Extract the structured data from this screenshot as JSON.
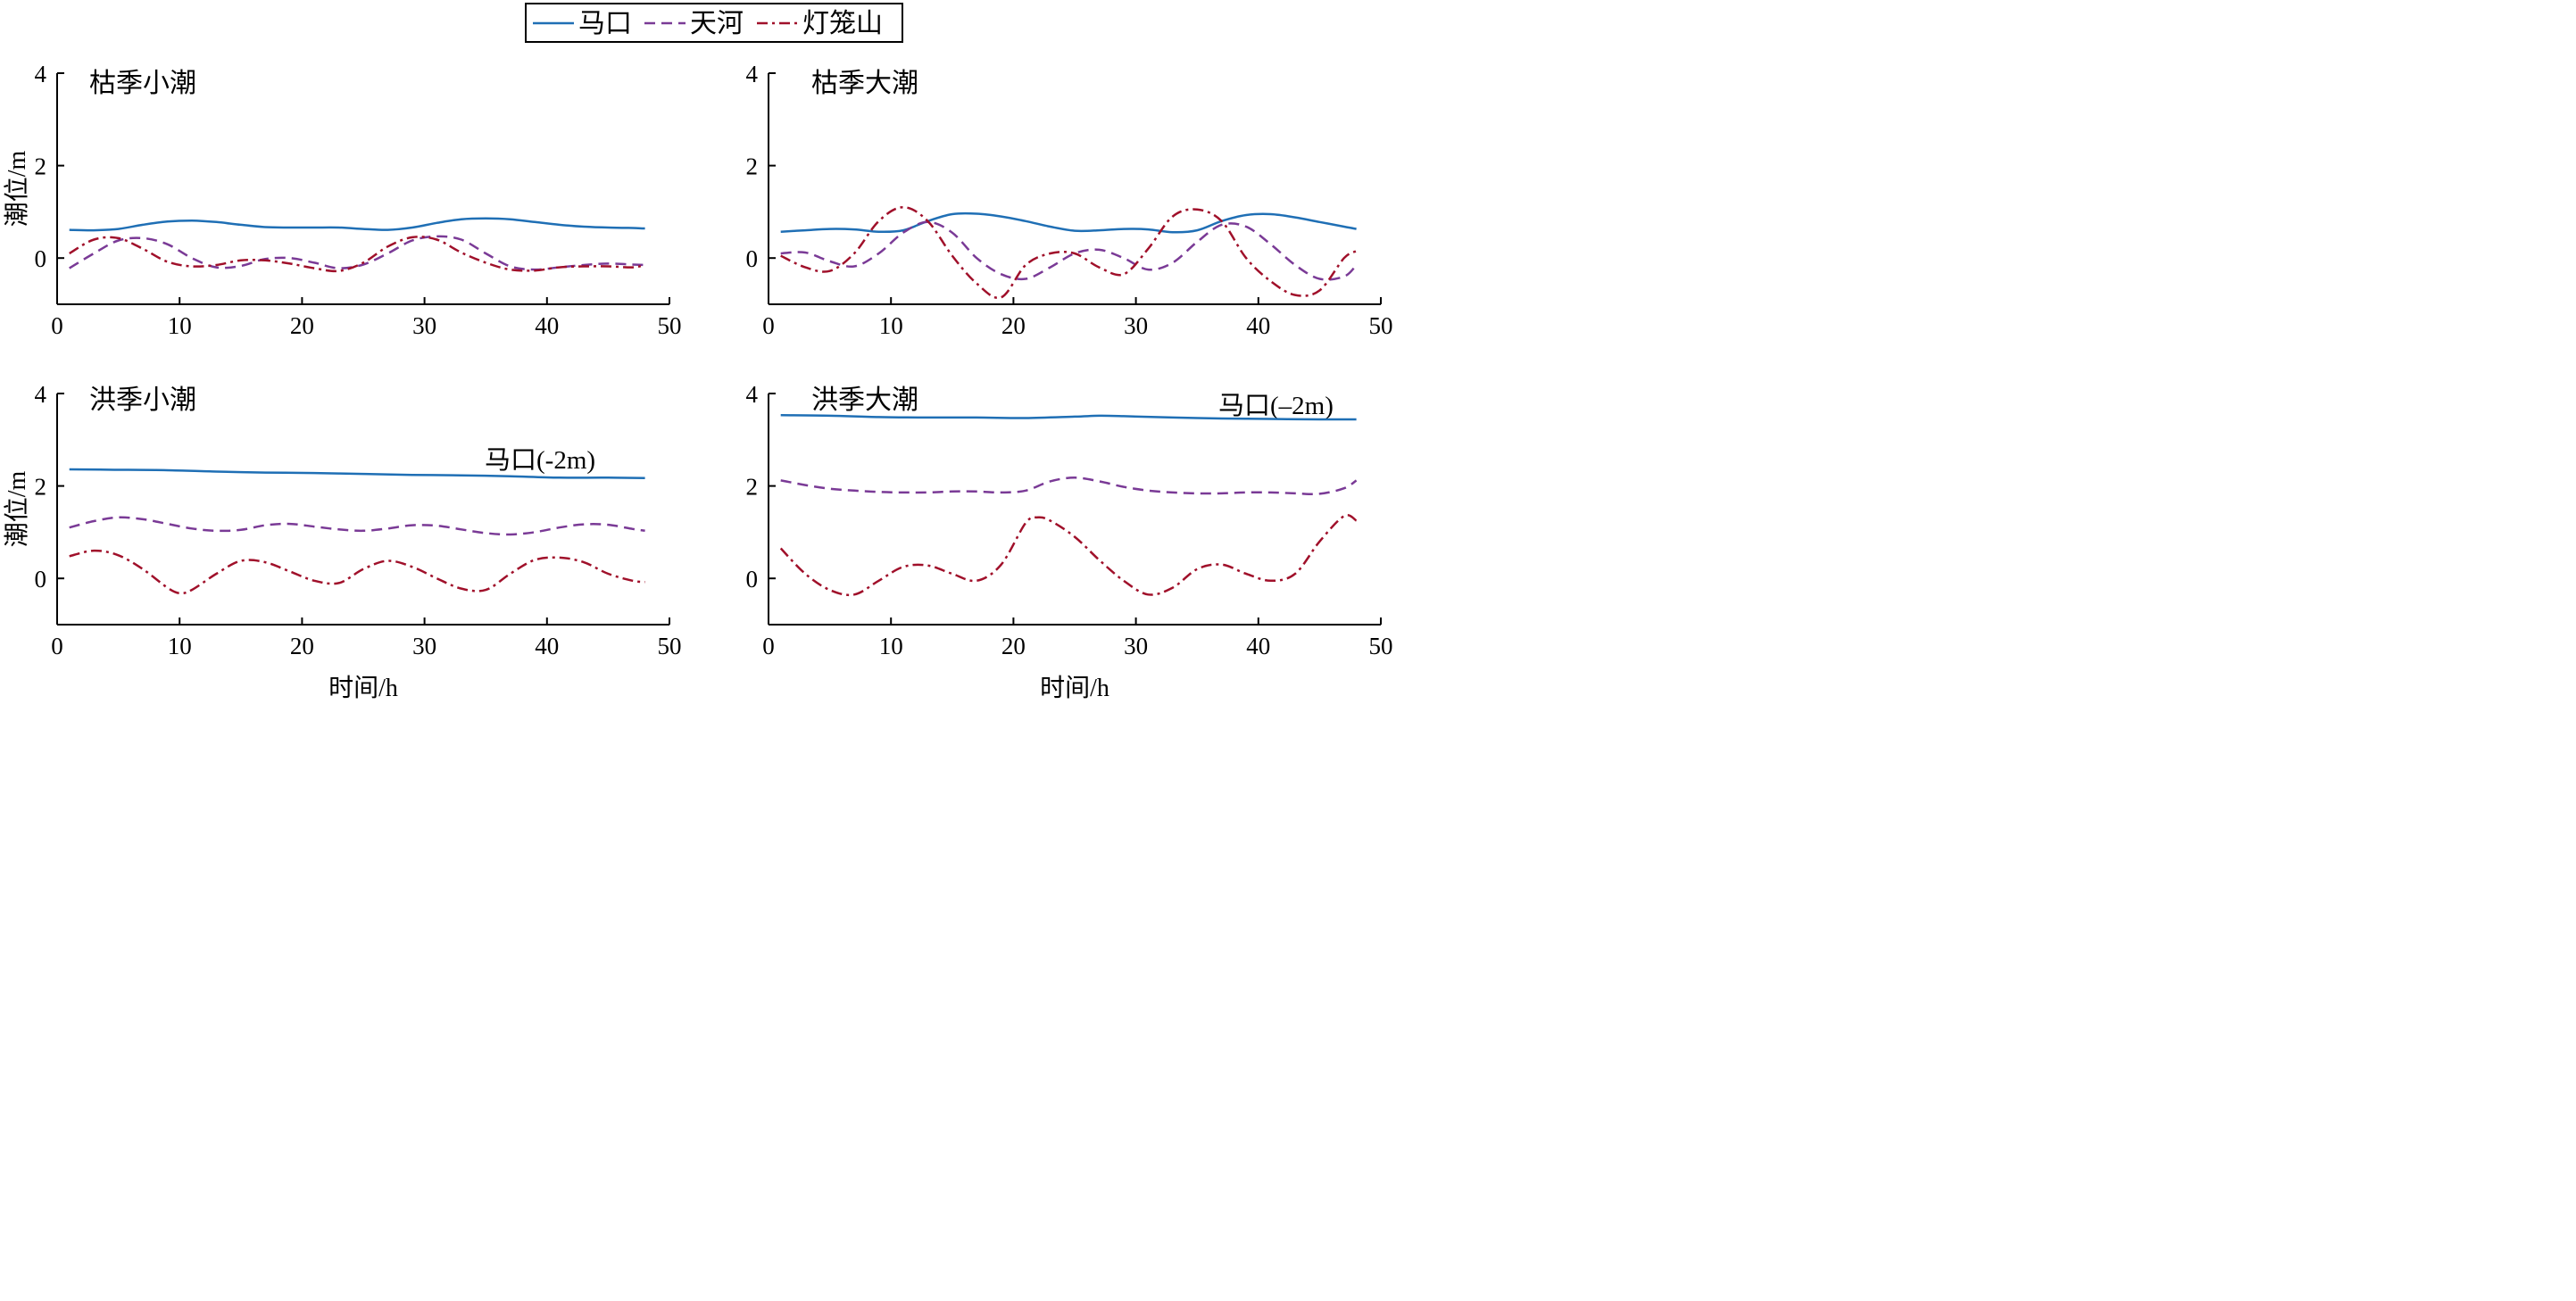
{
  "legend": [
    {
      "label": "马口",
      "color": "#1f6fb5",
      "dash": "solid"
    },
    {
      "label": "天河",
      "color": "#7a3a96",
      "dash": "dashed"
    },
    {
      "label": "灯笼山",
      "color": "#a0102a",
      "dash": "dashdot"
    }
  ],
  "chart_data": [
    {
      "type": "line",
      "panel_title": "枯季小潮",
      "ylabel": "潮位/m",
      "xlabel": "",
      "xlim": [
        0,
        50
      ],
      "ylim": [
        -1,
        4
      ],
      "xticks": [
        "0",
        "10",
        "20",
        "30",
        "40",
        "50"
      ],
      "yticks": [
        "0",
        "2",
        "4"
      ],
      "annotation": "",
      "series": [
        {
          "name": "马口",
          "color": "#1f6fb5",
          "dash": "solid",
          "x": [
            1,
            3,
            5,
            7,
            9,
            11,
            13,
            15,
            17,
            19,
            21,
            23,
            25,
            27,
            29,
            31,
            33,
            35,
            37,
            39,
            41,
            43,
            45,
            47,
            48
          ],
          "y": [
            0.61,
            0.6,
            0.63,
            0.72,
            0.79,
            0.81,
            0.78,
            0.72,
            0.67,
            0.66,
            0.66,
            0.66,
            0.63,
            0.61,
            0.66,
            0.76,
            0.84,
            0.86,
            0.84,
            0.78,
            0.72,
            0.68,
            0.66,
            0.65,
            0.64
          ]
        },
        {
          "name": "天河",
          "color": "#7a3a96",
          "dash": "dashed",
          "x": [
            1,
            3,
            5,
            7,
            9,
            11,
            13,
            15,
            17,
            19,
            21,
            23,
            25,
            27,
            29,
            31,
            33,
            35,
            37,
            39,
            41,
            43,
            45,
            47,
            48
          ],
          "y": [
            -0.22,
            0.1,
            0.38,
            0.43,
            0.3,
            0.0,
            -0.2,
            -0.17,
            -0.02,
            0.0,
            -0.1,
            -0.22,
            -0.14,
            0.1,
            0.38,
            0.47,
            0.4,
            0.1,
            -0.18,
            -0.25,
            -0.2,
            -0.15,
            -0.12,
            -0.14,
            -0.15
          ]
        },
        {
          "name": "灯笼山",
          "color": "#a0102a",
          "dash": "dashdot",
          "x": [
            1,
            3,
            5,
            7,
            9,
            11,
            13,
            15,
            17,
            19,
            21,
            23,
            25,
            27,
            29,
            31,
            33,
            35,
            37,
            39,
            41,
            43,
            45,
            47,
            48
          ],
          "y": [
            0.1,
            0.4,
            0.43,
            0.2,
            -0.08,
            -0.18,
            -0.15,
            -0.05,
            -0.05,
            -0.12,
            -0.22,
            -0.28,
            -0.1,
            0.25,
            0.45,
            0.4,
            0.12,
            -0.1,
            -0.25,
            -0.27,
            -0.2,
            -0.18,
            -0.18,
            -0.2,
            -0.15
          ]
        }
      ]
    },
    {
      "type": "line",
      "panel_title": "枯季大潮",
      "ylabel": "",
      "xlabel": "",
      "xlim": [
        0,
        50
      ],
      "ylim": [
        -1,
        4
      ],
      "xticks": [
        "0",
        "10",
        "20",
        "30",
        "40",
        "50"
      ],
      "yticks": [
        "0",
        "2",
        "4"
      ],
      "annotation": "",
      "series": [
        {
          "name": "马口",
          "color": "#1f6fb5",
          "dash": "solid",
          "x": [
            1,
            3,
            5,
            7,
            9,
            11,
            13,
            15,
            17,
            19,
            21,
            23,
            25,
            27,
            29,
            31,
            33,
            35,
            37,
            39,
            41,
            43,
            45,
            47,
            48
          ],
          "y": [
            0.57,
            0.6,
            0.63,
            0.62,
            0.57,
            0.6,
            0.8,
            0.95,
            0.96,
            0.9,
            0.8,
            0.68,
            0.59,
            0.6,
            0.63,
            0.62,
            0.56,
            0.6,
            0.8,
            0.93,
            0.95,
            0.88,
            0.78,
            0.68,
            0.63
          ]
        },
        {
          "name": "天河",
          "color": "#7a3a96",
          "dash": "dashed",
          "x": [
            1,
            3,
            5,
            7,
            9,
            11,
            13,
            15,
            17,
            19,
            21,
            23,
            25,
            27,
            29,
            31,
            33,
            35,
            37,
            39,
            41,
            43,
            45,
            47,
            48
          ],
          "y": [
            0.1,
            0.12,
            -0.07,
            -0.18,
            0.1,
            0.55,
            0.78,
            0.55,
            0.0,
            -0.35,
            -0.45,
            -0.2,
            0.1,
            0.18,
            0.0,
            -0.25,
            -0.1,
            0.35,
            0.72,
            0.68,
            0.3,
            -0.15,
            -0.45,
            -0.4,
            -0.15
          ]
        },
        {
          "name": "灯笼山",
          "color": "#a0102a",
          "dash": "dashdot",
          "x": [
            1,
            3,
            5,
            7,
            9,
            11,
            13,
            15,
            17,
            19,
            21,
            23,
            25,
            27,
            29,
            31,
            33,
            35,
            37,
            39,
            41,
            43,
            45,
            47,
            48
          ],
          "y": [
            0.05,
            -0.2,
            -0.28,
            0.1,
            0.8,
            1.1,
            0.8,
            0.05,
            -0.55,
            -0.85,
            -0.15,
            0.1,
            0.1,
            -0.2,
            -0.35,
            0.2,
            0.9,
            1.05,
            0.8,
            0.0,
            -0.5,
            -0.8,
            -0.7,
            0.0,
            0.15
          ]
        }
      ]
    },
    {
      "type": "line",
      "panel_title": "洪季小潮",
      "ylabel": "潮位/m",
      "xlabel": "时间/h",
      "xlim": [
        0,
        50
      ],
      "ylim": [
        -1,
        4
      ],
      "xticks": [
        "0",
        "10",
        "20",
        "30",
        "40",
        "50"
      ],
      "yticks": [
        "0",
        "2",
        "4"
      ],
      "annotation": "马口(-2m)",
      "series": [
        {
          "name": "马口",
          "color": "#1f6fb5",
          "dash": "solid",
          "x": [
            1,
            5,
            9,
            13,
            17,
            21,
            25,
            29,
            33,
            37,
            41,
            45,
            48
          ],
          "y": [
            2.36,
            2.35,
            2.34,
            2.31,
            2.29,
            2.28,
            2.26,
            2.24,
            2.23,
            2.21,
            2.18,
            2.18,
            2.17
          ]
        },
        {
          "name": "天河",
          "color": "#7a3a96",
          "dash": "dashed",
          "x": [
            1,
            3,
            5,
            7,
            9,
            11,
            13,
            15,
            17,
            19,
            21,
            23,
            25,
            27,
            29,
            31,
            33,
            35,
            37,
            39,
            41,
            43,
            45,
            47,
            48
          ],
          "y": [
            1.1,
            1.24,
            1.32,
            1.28,
            1.18,
            1.08,
            1.03,
            1.05,
            1.15,
            1.18,
            1.12,
            1.06,
            1.03,
            1.08,
            1.15,
            1.14,
            1.06,
            0.98,
            0.95,
            1.0,
            1.1,
            1.17,
            1.16,
            1.07,
            1.03
          ]
        },
        {
          "name": "灯笼山",
          "color": "#a0102a",
          "dash": "dashdot",
          "x": [
            1,
            3,
            5,
            7,
            9,
            10,
            11,
            13,
            15,
            17,
            19,
            21,
            23,
            25,
            27,
            29,
            31,
            33,
            35,
            37,
            39,
            41,
            43,
            45,
            47,
            48
          ],
          "y": [
            0.48,
            0.6,
            0.5,
            0.2,
            -0.2,
            -0.32,
            -0.25,
            0.1,
            0.38,
            0.35,
            0.15,
            -0.05,
            -0.1,
            0.2,
            0.38,
            0.25,
            0.0,
            -0.22,
            -0.25,
            0.1,
            0.4,
            0.45,
            0.35,
            0.1,
            -0.05,
            -0.08
          ]
        }
      ]
    },
    {
      "type": "line",
      "panel_title": "洪季大潮",
      "ylabel": "",
      "xlabel": "时间/h",
      "xlim": [
        0,
        50
      ],
      "ylim": [
        -1,
        4
      ],
      "xticks": [
        "0",
        "10",
        "20",
        "30",
        "40",
        "50"
      ],
      "yticks": [
        "0",
        "2",
        "4"
      ],
      "annotation": "马口(–2m)",
      "series": [
        {
          "name": "马口",
          "color": "#1f6fb5",
          "dash": "solid",
          "x": [
            1,
            5,
            9,
            13,
            17,
            21,
            25,
            27,
            29,
            33,
            37,
            41,
            45,
            48
          ],
          "y": [
            3.53,
            3.52,
            3.49,
            3.48,
            3.48,
            3.47,
            3.5,
            3.52,
            3.51,
            3.48,
            3.46,
            3.45,
            3.44,
            3.44
          ]
        },
        {
          "name": "天河",
          "color": "#7a3a96",
          "dash": "dashed",
          "x": [
            1,
            3,
            5,
            7,
            9,
            11,
            13,
            15,
            17,
            19,
            21,
            23,
            25,
            27,
            29,
            31,
            33,
            35,
            37,
            39,
            41,
            43,
            45,
            47,
            48
          ],
          "y": [
            2.12,
            2.02,
            1.94,
            1.9,
            1.87,
            1.86,
            1.86,
            1.88,
            1.88,
            1.86,
            1.9,
            2.1,
            2.18,
            2.1,
            1.98,
            1.9,
            1.86,
            1.84,
            1.84,
            1.86,
            1.86,
            1.84,
            1.83,
            1.95,
            2.12
          ]
        },
        {
          "name": "灯笼山",
          "color": "#a0102a",
          "dash": "dashdot",
          "x": [
            1,
            3,
            5,
            7,
            9,
            11,
            13,
            15,
            17,
            19,
            21,
            22,
            23,
            25,
            27,
            29,
            31,
            33,
            35,
            37,
            39,
            41,
            43,
            45,
            47,
            48
          ],
          "y": [
            0.65,
            0.1,
            -0.25,
            -0.35,
            -0.05,
            0.25,
            0.28,
            0.1,
            -0.05,
            0.3,
            1.2,
            1.32,
            1.25,
            0.9,
            0.4,
            -0.05,
            -0.35,
            -0.2,
            0.2,
            0.3,
            0.1,
            -0.05,
            0.1,
            0.8,
            1.35,
            1.25
          ]
        }
      ]
    }
  ]
}
